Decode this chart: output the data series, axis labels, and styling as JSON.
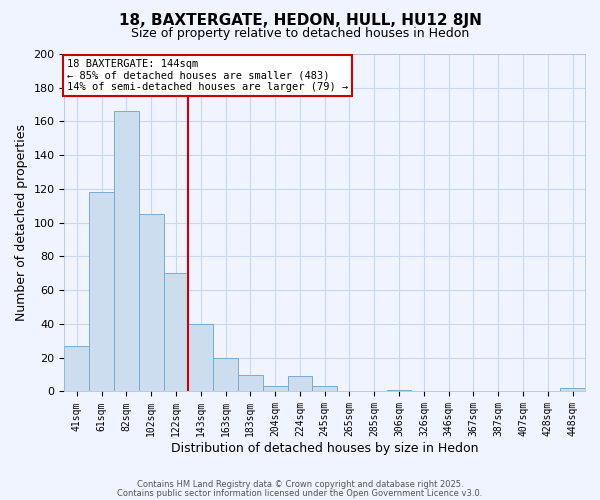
{
  "title": "18, BAXTERGATE, HEDON, HULL, HU12 8JN",
  "subtitle": "Size of property relative to detached houses in Hedon",
  "xlabel": "Distribution of detached houses by size in Hedon",
  "ylabel": "Number of detached properties",
  "bar_labels": [
    "41sqm",
    "61sqm",
    "82sqm",
    "102sqm",
    "122sqm",
    "143sqm",
    "163sqm",
    "183sqm",
    "204sqm",
    "224sqm",
    "245sqm",
    "265sqm",
    "285sqm",
    "306sqm",
    "326sqm",
    "346sqm",
    "367sqm",
    "387sqm",
    "407sqm",
    "428sqm",
    "448sqm"
  ],
  "bar_values": [
    27,
    118,
    166,
    105,
    70,
    40,
    20,
    10,
    3,
    9,
    3,
    0,
    0,
    1,
    0,
    0,
    0,
    0,
    0,
    0,
    2
  ],
  "bar_color": "#ccddf0",
  "bar_edge_color": "#7aaad0",
  "vline_color": "#cc0000",
  "annotation_text": "18 BAXTERGATE: 144sqm\n← 85% of detached houses are smaller (483)\n14% of semi-detached houses are larger (79) →",
  "annotation_box_color": "white",
  "annotation_box_edge": "#cc0000",
  "ylim": [
    0,
    200
  ],
  "yticks": [
    0,
    20,
    40,
    60,
    80,
    100,
    120,
    140,
    160,
    180,
    200
  ],
  "footer1": "Contains HM Land Registry data © Crown copyright and database right 2025.",
  "footer2": "Contains public sector information licensed under the Open Government Licence v3.0.",
  "bg_color": "#f0f4ff",
  "grid_color": "#c8d8ee"
}
